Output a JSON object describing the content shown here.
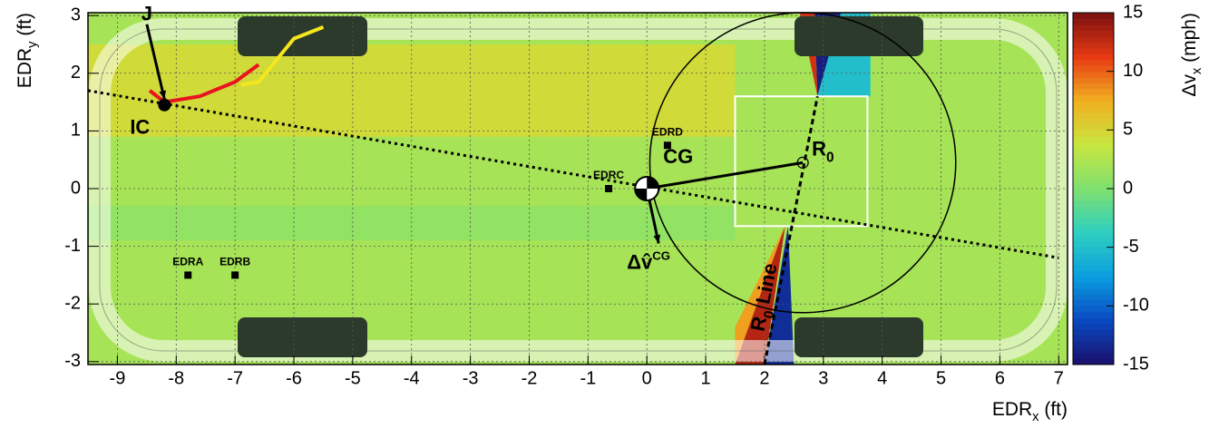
{
  "chart_data": {
    "type": "heatmap",
    "xlabel": [
      "EDR",
      "x",
      " (ft)"
    ],
    "ylabel": [
      "EDR",
      "y",
      " (ft)"
    ],
    "zlabel": [
      "Δv",
      "x",
      " (mph)"
    ],
    "xlim": [
      -9.5,
      7.15
    ],
    "ylim": [
      -3.05,
      3.05
    ],
    "zlim": [
      -15,
      15
    ],
    "xticks": [
      -9,
      -8,
      -7,
      -6,
      -5,
      -4,
      -3,
      -2,
      -1,
      0,
      1,
      2,
      3,
      4,
      5,
      6,
      7
    ],
    "yticks": [
      -3,
      -2,
      -1,
      0,
      1,
      2,
      3
    ],
    "zticks": [
      -15,
      -10,
      -5,
      0,
      5,
      10,
      15
    ],
    "grid": true,
    "palette": [
      "#1a0f6b",
      "#0a48c0",
      "#0a9ee0",
      "#2ecfc0",
      "#7fe070",
      "#c8e640",
      "#f0b020",
      "#e83a14",
      "#7a1010"
    ],
    "background_z": 2,
    "regions": [
      {
        "points": [
          [
            -9.5,
            0.9
          ],
          [
            1.5,
            0.9
          ],
          [
            1.5,
            2.5
          ],
          [
            -9.5,
            2.5
          ]
        ],
        "z": 4.5
      },
      {
        "points": [
          [
            -9.5,
            -0.9
          ],
          [
            1.5,
            -0.9
          ],
          [
            1.5,
            -0.3
          ],
          [
            -9.5,
            -0.3
          ]
        ],
        "z": 1
      },
      {
        "points": [
          [
            2.6,
            3.05
          ],
          [
            2.85,
            3.05
          ],
          [
            2.9,
            1.6
          ]
        ],
        "z": 12
      },
      {
        "points": [
          [
            2.85,
            3.05
          ],
          [
            3.3,
            3.05
          ],
          [
            2.9,
            1.6
          ]
        ],
        "z": -14
      },
      {
        "points": [
          [
            3.3,
            3.05
          ],
          [
            3.8,
            3.05
          ],
          [
            3.8,
            1.6
          ],
          [
            2.9,
            1.6
          ]
        ],
        "z": -5
      },
      {
        "points": [
          [
            1.5,
            -3.05
          ],
          [
            1.5,
            -2.4
          ],
          [
            2.35,
            -0.65
          ]
        ],
        "z": 8
      },
      {
        "points": [
          [
            1.5,
            -3.05
          ],
          [
            2.0,
            -3.05
          ],
          [
            2.35,
            -0.65
          ]
        ],
        "z": 13
      },
      {
        "points": [
          [
            2.0,
            -3.05
          ],
          [
            2.5,
            -3.05
          ],
          [
            2.4,
            -0.65
          ]
        ],
        "z": -13
      }
    ],
    "rectangle": {
      "x": [
        1.5,
        3.75
      ],
      "y": [
        -0.65,
        1.6
      ]
    },
    "circle": {
      "x": 2.65,
      "y": 0.45,
      "r": 2.6
    },
    "lines": [
      {
        "x": [
          -9.5,
          7.0
        ],
        "y": [
          1.7,
          -1.2
        ],
        "color": "#000000",
        "dash": "dotted"
      },
      {
        "x": [
          2.0,
          2.9
        ],
        "y": [
          -3.05,
          1.6
        ],
        "color": "#000000",
        "dash": "dashed"
      },
      {
        "x": [
          -8.45,
          -8.2,
          -7.6,
          -7.0,
          -6.6
        ],
        "y": [
          1.7,
          1.5,
          1.6,
          1.85,
          2.15
        ],
        "color": "#e8141e",
        "dash": "solid"
      },
      {
        "x": [
          -6.9,
          -6.6,
          -6.0,
          -5.5
        ],
        "y": [
          1.8,
          1.85,
          2.6,
          2.8
        ],
        "color": "#f5e61e",
        "dash": "solid"
      },
      {
        "x": [
          0,
          2.65
        ],
        "y": [
          0,
          0.45
        ],
        "color": "#000000",
        "dash": "solid"
      }
    ],
    "arrows": [
      {
        "x": [
          -8.5,
          -8.2
        ],
        "y": [
          2.85,
          1.55
        ],
        "label": "J"
      },
      {
        "x": [
          0,
          0.2
        ],
        "y": [
          0,
          -0.95
        ],
        "label": [
          "Δv̂",
          "CG"
        ]
      }
    ],
    "markers": [
      {
        "label": "EDRA",
        "x": -7.8,
        "y": -1.5,
        "kind": "square"
      },
      {
        "label": "EDRB",
        "x": -7.0,
        "y": -1.5,
        "kind": "square"
      },
      {
        "label": "EDRC",
        "x": -0.65,
        "y": 0,
        "kind": "square"
      },
      {
        "label": "EDRD",
        "x": 0.35,
        "y": 0.75,
        "kind": "square"
      },
      {
        "label": "CG",
        "x": 0,
        "y": 0,
        "kind": "cg"
      },
      {
        "label": "IC",
        "x": -8.2,
        "y": 1.45,
        "kind": "dot"
      },
      {
        "label": [
          "R",
          "0"
        ],
        "x": 2.65,
        "y": 0.45,
        "kind": "ring"
      }
    ],
    "line_label": [
      "R",
      "0",
      " Line"
    ]
  }
}
